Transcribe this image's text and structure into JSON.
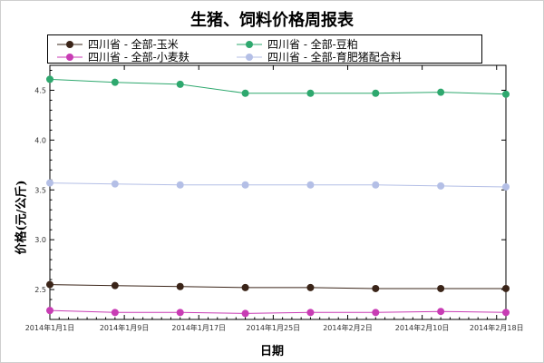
{
  "chart_data": {
    "type": "line",
    "title": "生猪、饲料价格周报表",
    "xlabel": "日期",
    "ylabel": "价格(元/公斤)",
    "ylim": [
      2.2,
      4.75
    ],
    "y_ticks": [
      "2.5",
      "3.0",
      "3.5",
      "4.0",
      "4.5"
    ],
    "y_tick_values": [
      2.5,
      3.0,
      3.5,
      4.0,
      4.5
    ],
    "x_ticks": [
      "2014年1月1日",
      "2014年1月9日",
      "2014年1月17日",
      "2014年1月25日",
      "2014年2月2日",
      "2014年2月10日",
      "2014年2月18日"
    ],
    "x_tick_days": [
      0,
      8,
      16,
      24,
      32,
      40,
      48
    ],
    "x": [
      "2014-01-01",
      "2014-01-08",
      "2014-01-15",
      "2014-01-22",
      "2014-01-29",
      "2014-02-05",
      "2014-02-12",
      "2014-02-19"
    ],
    "x_days": [
      0,
      7,
      14,
      21,
      28,
      35,
      42,
      49
    ],
    "xlim_days": [
      0,
      49
    ],
    "legend_position": "top",
    "grid": false,
    "series": [
      {
        "name": "四川省 - 全部-玉米",
        "color": "#3a2418",
        "values": [
          2.55,
          2.54,
          2.53,
          2.52,
          2.52,
          2.51,
          2.51,
          2.51
        ]
      },
      {
        "name": "四川省 - 全部-豆粕",
        "color": "#2ea86e",
        "values": [
          4.61,
          4.58,
          4.56,
          4.47,
          4.47,
          4.47,
          4.48,
          4.46
        ]
      },
      {
        "name": "四川省 - 全部-小麦麸",
        "color": "#c83cb4",
        "values": [
          2.29,
          2.27,
          2.27,
          2.26,
          2.27,
          2.27,
          2.28,
          2.27
        ]
      },
      {
        "name": "四川省 - 全部-育肥猪配合料",
        "color": "#b4bfe6",
        "values": [
          3.57,
          3.56,
          3.55,
          3.55,
          3.55,
          3.55,
          3.54,
          3.53
        ]
      }
    ]
  }
}
